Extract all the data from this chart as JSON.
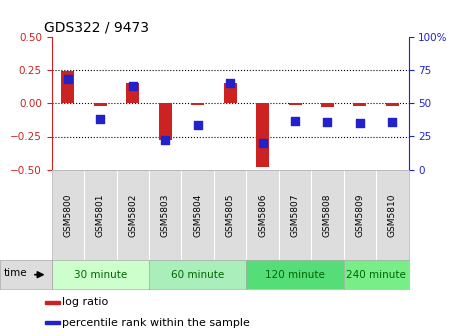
{
  "title": "GDS322 / 9473",
  "samples": [
    "GSM5800",
    "GSM5801",
    "GSM5802",
    "GSM5803",
    "GSM5804",
    "GSM5805",
    "GSM5806",
    "GSM5807",
    "GSM5808",
    "GSM5809",
    "GSM5810"
  ],
  "log_ratio": [
    0.24,
    -0.02,
    0.15,
    -0.28,
    -0.01,
    0.15,
    -0.48,
    -0.01,
    -0.03,
    -0.02,
    -0.02
  ],
  "percentile": [
    68,
    38,
    63,
    22,
    34,
    65,
    20,
    37,
    36,
    35,
    36
  ],
  "ylim_left": [
    -0.5,
    0.5
  ],
  "ylim_right": [
    0,
    100
  ],
  "yticks_left": [
    -0.5,
    -0.25,
    0,
    0.25,
    0.5
  ],
  "yticks_right": [
    0,
    25,
    50,
    75,
    100
  ],
  "hlines": [
    0.25,
    0.0,
    -0.25
  ],
  "bar_color": "#cc2222",
  "dot_color": "#2222cc",
  "bar_width": 0.4,
  "dot_size": 28,
  "groups": [
    {
      "label": "30 minute",
      "start": 0,
      "end": 3,
      "color": "#ccffcc"
    },
    {
      "label": "60 minute",
      "start": 3,
      "end": 6,
      "color": "#aaeebb"
    },
    {
      "label": "120 minute",
      "start": 6,
      "end": 9,
      "color": "#55dd77"
    },
    {
      "label": "240 minute",
      "start": 9,
      "end": 11,
      "color": "#77ee88"
    }
  ],
  "time_label": "time",
  "legend_log_ratio": "log ratio",
  "legend_percentile": "percentile rank within the sample",
  "background_color": "#ffffff",
  "left_axis_color": "#cc2222",
  "right_axis_color": "#2222cc",
  "sample_box_color": "#dddddd",
  "time_box_color": "#dddddd"
}
